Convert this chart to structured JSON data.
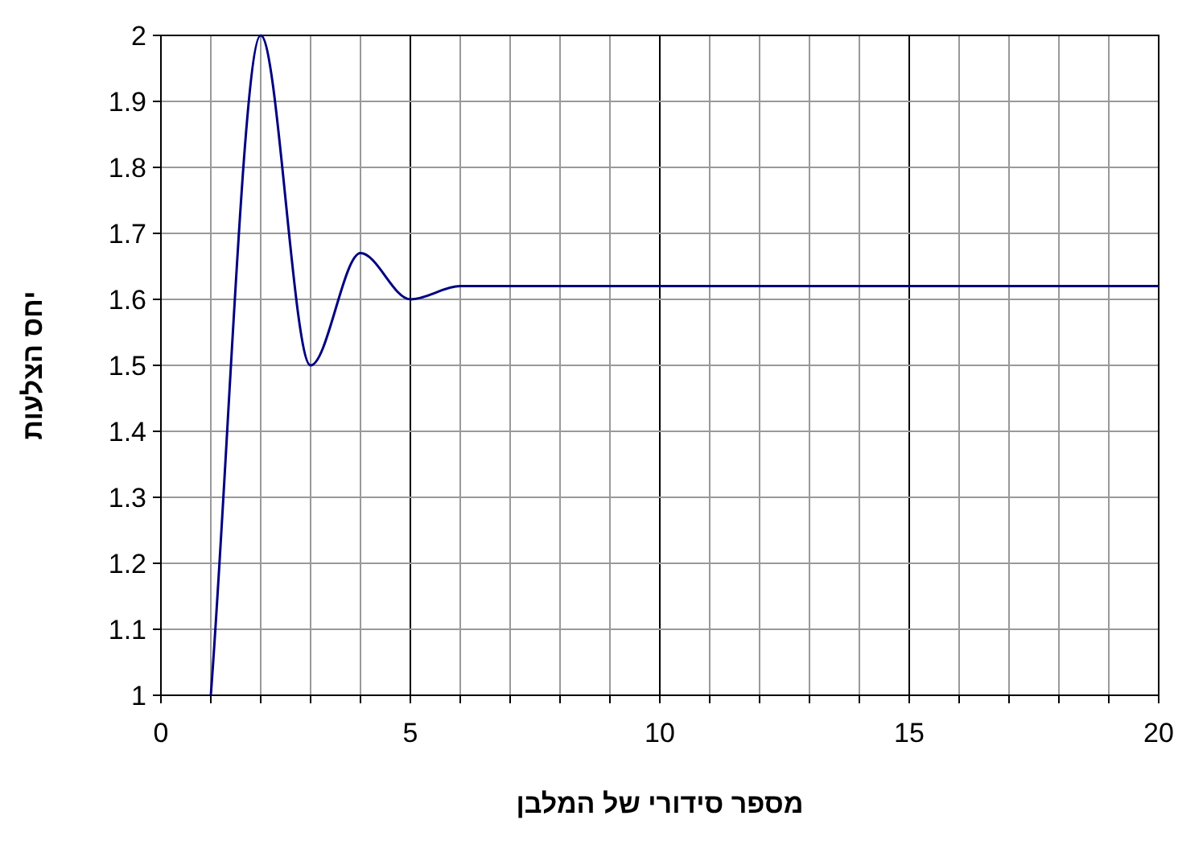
{
  "chart_data": {
    "type": "line",
    "xlabel": "מספר סידורי של המלבן",
    "ylabel": "יחס הצלעות",
    "x": [
      1,
      2,
      3,
      4,
      5,
      6,
      7,
      8,
      9,
      10,
      11,
      12,
      13,
      14,
      15,
      16,
      17,
      18,
      19,
      20
    ],
    "series": [
      {
        "color": "#000080",
        "values": [
          1,
          2,
          1.5,
          1.67,
          1.6,
          1.62,
          1.62,
          1.62,
          1.62,
          1.62,
          1.62,
          1.62,
          1.62,
          1.62,
          1.62,
          1.62,
          1.62,
          1.62,
          1.62,
          1.62
        ]
      }
    ],
    "xlim": [
      0,
      20
    ],
    "xticks": [
      0,
      {
        "value": 1,
        "label": null
      },
      {
        "value": 2,
        "label": null
      },
      {
        "value": 3,
        "label": null
      },
      {
        "value": 4,
        "label": null
      },
      5,
      {
        "value": 6,
        "label": null
      },
      {
        "value": 7,
        "label": null
      },
      {
        "value": 8,
        "label": null
      },
      {
        "value": 9,
        "label": null
      },
      10,
      {
        "value": 11,
        "label": null
      },
      {
        "value": 12,
        "label": null
      },
      {
        "value": 13,
        "label": null
      },
      {
        "value": 14,
        "label": null
      },
      15,
      {
        "value": 16,
        "label": null
      },
      {
        "value": 17,
        "label": null
      },
      {
        "value": 18,
        "label": null
      },
      {
        "value": 19,
        "label": null
      },
      20
    ],
    "ylim": [
      1,
      2
    ],
    "yticks": [
      1,
      1.1,
      1.2,
      1.3,
      1.4,
      1.5,
      1.6,
      1.7,
      1.8,
      1.9,
      2
    ],
    "grid": true,
    "marker": "none",
    "line_style": "solid"
  }
}
